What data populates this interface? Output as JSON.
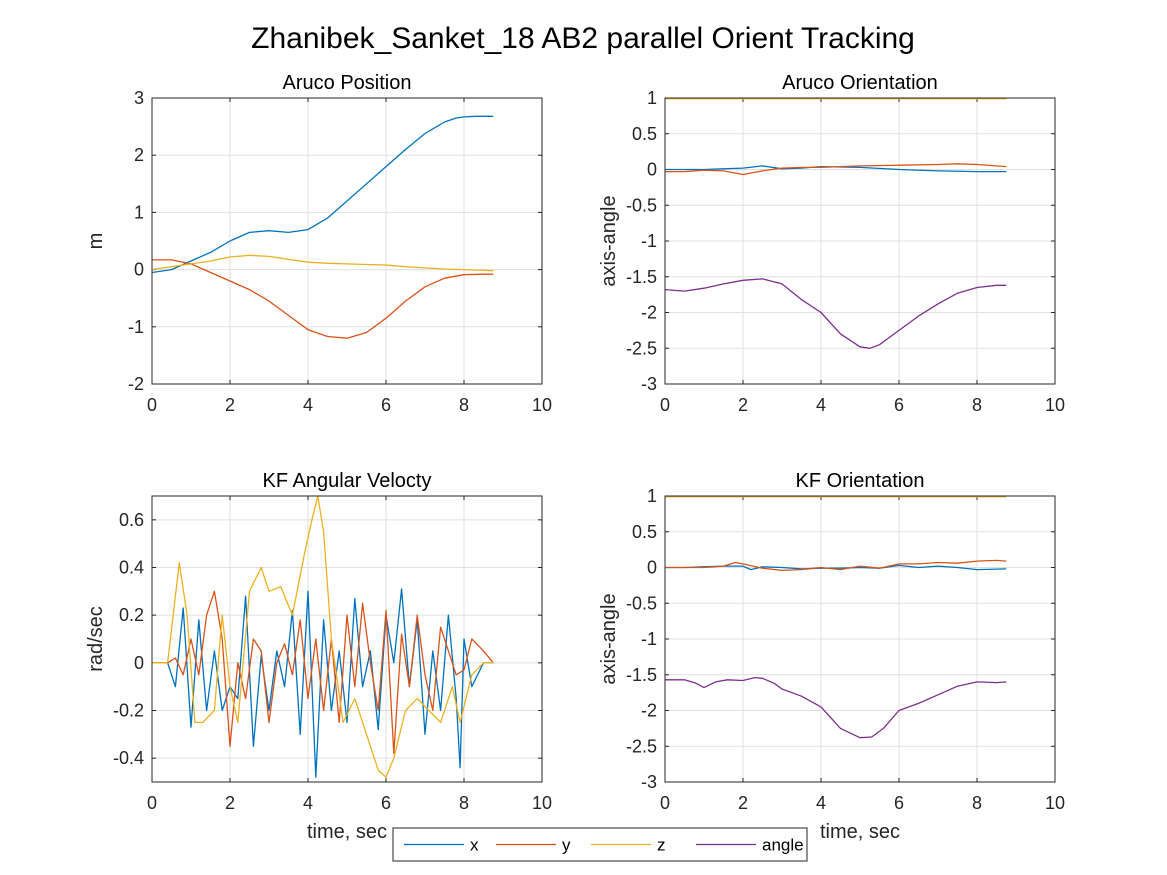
{
  "figure": {
    "title": "Zhanibek_Sanket_18 AB2 parallel Orient Tracking"
  },
  "colors": {
    "x": "#0072BD",
    "y": "#D95319",
    "z": "#EDB120",
    "angle": "#7E2F8E",
    "grid": "#dfdfdf",
    "axis": "#262626"
  },
  "legend": {
    "entries": [
      "x",
      "y",
      "z",
      "angle"
    ],
    "placement": "bottom-center"
  },
  "chart_data": [
    {
      "type": "line",
      "title": "Aruco Position",
      "xlabel": "",
      "ylabel": "m",
      "xlim": [
        0,
        10
      ],
      "ylim": [
        -2,
        3
      ],
      "xticks": [
        "0",
        "2",
        "4",
        "6",
        "8",
        "10"
      ],
      "yticks": [
        "-2",
        "-1",
        "0",
        "1",
        "2",
        "3"
      ],
      "grid": true,
      "series": [
        {
          "key": "x",
          "x": [
            0,
            0.5,
            1,
            1.5,
            2,
            2.5,
            3,
            3.5,
            4,
            4.5,
            5,
            5.5,
            6,
            6.5,
            7,
            7.5,
            7.8,
            8,
            8.3,
            8.75
          ],
          "y": [
            -0.05,
            0,
            0.15,
            0.3,
            0.5,
            0.65,
            0.68,
            0.65,
            0.7,
            0.9,
            1.2,
            1.5,
            1.8,
            2.1,
            2.38,
            2.58,
            2.65,
            2.67,
            2.68,
            2.68
          ]
        },
        {
          "key": "y",
          "x": [
            0,
            0.5,
            1,
            1.5,
            2,
            2.5,
            3,
            3.5,
            4,
            4.5,
            5,
            5.5,
            6,
            6.5,
            7,
            7.5,
            8,
            8.5,
            8.75
          ],
          "y": [
            0.17,
            0.17,
            0.1,
            -0.05,
            -0.2,
            -0.35,
            -0.55,
            -0.8,
            -1.05,
            -1.17,
            -1.2,
            -1.1,
            -0.85,
            -0.55,
            -0.3,
            -0.15,
            -0.09,
            -0.08,
            -0.08
          ]
        },
        {
          "key": "z",
          "x": [
            0,
            0.5,
            1,
            1.5,
            2,
            2.5,
            3,
            3.5,
            4,
            4.5,
            5,
            5.5,
            6,
            6.5,
            7,
            7.5,
            8,
            8.75
          ],
          "y": [
            0.0,
            0.05,
            0.1,
            0.15,
            0.22,
            0.25,
            0.23,
            0.18,
            0.13,
            0.11,
            0.1,
            0.09,
            0.08,
            0.05,
            0.03,
            0.01,
            0.0,
            -0.02
          ]
        }
      ]
    },
    {
      "type": "line",
      "title": "Aruco Orientation",
      "xlabel": "",
      "ylabel": "axis-angle",
      "xlim": [
        0,
        10
      ],
      "ylim": [
        -3,
        1
      ],
      "xticks": [
        "0",
        "2",
        "4",
        "6",
        "8",
        "10"
      ],
      "yticks": [
        "-3",
        "-2.5",
        "-2",
        "-1.5",
        "-1",
        "-0.5",
        "0",
        "0.5",
        "1"
      ],
      "grid": true,
      "series": [
        {
          "key": "x",
          "x": [
            0,
            1,
            1.5,
            2,
            2.5,
            3,
            3.5,
            4,
            5,
            6,
            7,
            8,
            8.75
          ],
          "y": [
            0.0,
            0.0,
            0.01,
            0.02,
            0.05,
            0.01,
            0.02,
            0.04,
            0.03,
            0.0,
            -0.02,
            -0.03,
            -0.03
          ]
        },
        {
          "key": "y",
          "x": [
            0,
            0.5,
            1,
            1.5,
            2,
            2.5,
            3,
            3.5,
            4,
            5,
            6,
            7,
            7.5,
            8,
            8.75
          ],
          "y": [
            -0.03,
            -0.03,
            -0.01,
            -0.02,
            -0.07,
            -0.02,
            0.02,
            0.03,
            0.03,
            0.05,
            0.06,
            0.07,
            0.08,
            0.07,
            0.04
          ]
        },
        {
          "key": "z",
          "x": [
            0,
            8.75
          ],
          "y": [
            0.99,
            0.99
          ]
        },
        {
          "key": "angle",
          "x": [
            0,
            0.5,
            1,
            1.5,
            2,
            2.5,
            3,
            3.5,
            4,
            4.5,
            5,
            5.25,
            5.5,
            6,
            6.5,
            7,
            7.5,
            8,
            8.5,
            8.75
          ],
          "y": [
            -1.68,
            -1.7,
            -1.66,
            -1.6,
            -1.55,
            -1.53,
            -1.6,
            -1.82,
            -2.0,
            -2.3,
            -2.48,
            -2.5,
            -2.45,
            -2.25,
            -2.05,
            -1.88,
            -1.73,
            -1.65,
            -1.62,
            -1.62
          ]
        }
      ]
    },
    {
      "type": "line",
      "title": "KF Angular Velocty",
      "xlabel": "time, sec",
      "ylabel": "rad/sec",
      "xlim": [
        0,
        10
      ],
      "ylim": [
        -0.5,
        0.7
      ],
      "xticks": [
        "0",
        "2",
        "4",
        "6",
        "8",
        "10"
      ],
      "yticks": [
        "-0.4",
        "-0.2",
        "0",
        "0.2",
        "0.4",
        "0.6"
      ],
      "grid": true,
      "series": [
        {
          "key": "x",
          "x": [
            0,
            0.4,
            0.6,
            0.8,
            1,
            1.2,
            1.4,
            1.6,
            1.8,
            2,
            2.2,
            2.4,
            2.6,
            2.8,
            3,
            3.2,
            3.4,
            3.6,
            3.8,
            4,
            4.2,
            4.4,
            4.6,
            4.8,
            5,
            5.2,
            5.4,
            5.6,
            5.8,
            6,
            6.2,
            6.4,
            6.6,
            6.8,
            7,
            7.2,
            7.4,
            7.6,
            7.8,
            7.9,
            8,
            8.2,
            8.5,
            8.75
          ],
          "y": [
            0,
            0,
            -0.1,
            0.23,
            -0.27,
            0.18,
            -0.2,
            0.05,
            -0.2,
            -0.1,
            -0.15,
            0.28,
            -0.35,
            0.03,
            -0.2,
            0.05,
            -0.1,
            0.22,
            -0.3,
            0.3,
            -0.48,
            0.18,
            -0.2,
            0.05,
            -0.25,
            0.27,
            -0.1,
            0.05,
            -0.28,
            0.2,
            0.0,
            0.31,
            -0.1,
            0.18,
            -0.3,
            0.05,
            -0.2,
            0.2,
            -0.15,
            -0.44,
            0.1,
            -0.1,
            0,
            0
          ]
        },
        {
          "key": "y",
          "x": [
            0,
            0.4,
            0.6,
            0.8,
            1,
            1.2,
            1.4,
            1.6,
            1.8,
            2,
            2.2,
            2.4,
            2.6,
            2.8,
            3,
            3.2,
            3.4,
            3.6,
            3.8,
            4,
            4.2,
            4.4,
            4.6,
            4.8,
            5,
            5.2,
            5.4,
            5.6,
            5.8,
            6,
            6.2,
            6.4,
            6.6,
            6.8,
            7,
            7.2,
            7.4,
            7.6,
            7.8,
            8,
            8.2,
            8.5,
            8.75
          ],
          "y": [
            0,
            0,
            0.02,
            -0.05,
            0.1,
            -0.05,
            0.2,
            0.3,
            0.1,
            -0.35,
            0.0,
            -0.15,
            0.1,
            0.05,
            -0.25,
            0.0,
            0.08,
            -0.05,
            0.18,
            -0.15,
            0.1,
            -0.2,
            0.1,
            -0.25,
            0.2,
            -0.1,
            0.25,
            0.0,
            -0.2,
            0.22,
            -0.38,
            0.12,
            -0.1,
            0.2,
            -0.05,
            -0.2,
            0.15,
            0.05,
            -0.05,
            -0.03,
            0.1,
            0.05,
            0
          ]
        },
        {
          "key": "z",
          "x": [
            0,
            0.4,
            0.7,
            0.9,
            1.1,
            1.3,
            1.6,
            1.8,
            2,
            2.2,
            2.5,
            2.8,
            3,
            3.3,
            3.6,
            3.9,
            4.1,
            4.25,
            4.4,
            4.6,
            4.9,
            5.2,
            5.5,
            5.8,
            6,
            6.2,
            6.5,
            6.8,
            7.1,
            7.4,
            7.7,
            7.9,
            8.2,
            8.5,
            8.75
          ],
          "y": [
            0,
            0,
            0.42,
            0.2,
            -0.25,
            -0.25,
            -0.2,
            0.2,
            -0.1,
            -0.25,
            0.3,
            0.4,
            0.3,
            0.32,
            0.2,
            0.45,
            0.6,
            0.7,
            0.55,
            0.1,
            -0.25,
            -0.15,
            -0.3,
            -0.45,
            -0.48,
            -0.4,
            -0.2,
            -0.15,
            -0.2,
            -0.25,
            -0.1,
            -0.25,
            -0.05,
            0,
            0
          ]
        }
      ]
    },
    {
      "type": "line",
      "title": "KF Orientation",
      "xlabel": "time, sec",
      "ylabel": "axis-angle",
      "xlim": [
        0,
        10
      ],
      "ylim": [
        -3,
        1
      ],
      "xticks": [
        "0",
        "2",
        "4",
        "6",
        "8",
        "10"
      ],
      "yticks": [
        "-3",
        "-2.5",
        "-2",
        "-1.5",
        "-1",
        "-0.5",
        "0",
        "0.5",
        "1"
      ],
      "grid": true,
      "series": [
        {
          "key": "x",
          "x": [
            0,
            0.5,
            1,
            1.5,
            2,
            2.2,
            2.5,
            3,
            3.5,
            4,
            4.5,
            5,
            5.5,
            6,
            6.5,
            7,
            7.5,
            8,
            8.75
          ],
          "y": [
            0,
            0,
            0.01,
            0.02,
            0.02,
            -0.03,
            0.01,
            0.0,
            -0.02,
            -0.01,
            -0.01,
            0.0,
            -0.01,
            0.03,
            0.0,
            0.02,
            0.0,
            -0.03,
            -0.02
          ]
        },
        {
          "key": "y",
          "x": [
            0,
            0.5,
            1,
            1.5,
            1.8,
            2,
            2.5,
            3,
            3.5,
            4,
            4.5,
            5,
            5.5,
            6,
            6.5,
            7,
            7.5,
            8,
            8.5,
            8.75
          ],
          "y": [
            0,
            0,
            0.0,
            0.02,
            0.07,
            0.05,
            -0.01,
            -0.04,
            -0.03,
            0.0,
            -0.03,
            0.02,
            -0.01,
            0.05,
            0.05,
            0.07,
            0.06,
            0.09,
            0.1,
            0.09
          ]
        },
        {
          "key": "z",
          "x": [
            0,
            8.75
          ],
          "y": [
            0.99,
            0.99
          ]
        },
        {
          "key": "angle",
          "x": [
            0,
            0.5,
            0.8,
            1,
            1.3,
            1.6,
            2,
            2.3,
            2.5,
            2.8,
            3,
            3.5,
            4,
            4.5,
            5,
            5.3,
            5.6,
            6,
            6.5,
            7,
            7.5,
            8,
            8.5,
            8.75
          ],
          "y": [
            -1.57,
            -1.57,
            -1.62,
            -1.68,
            -1.6,
            -1.57,
            -1.58,
            -1.54,
            -1.55,
            -1.62,
            -1.7,
            -1.8,
            -1.95,
            -2.25,
            -2.38,
            -2.37,
            -2.25,
            -2.0,
            -1.9,
            -1.78,
            -1.66,
            -1.6,
            -1.61,
            -1.6
          ]
        }
      ]
    }
  ]
}
